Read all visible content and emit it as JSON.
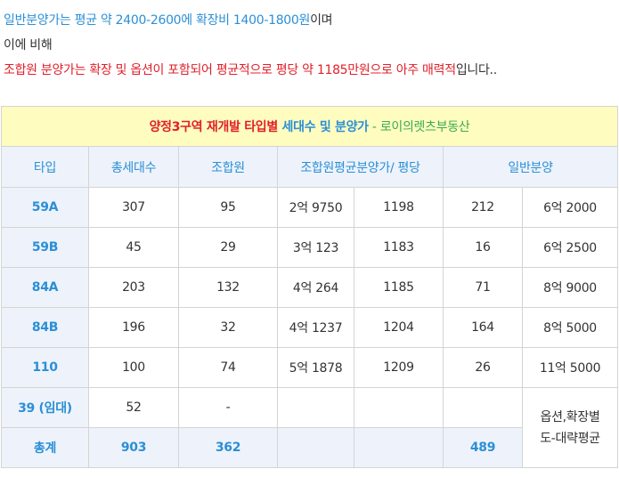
{
  "intro": {
    "line1_blue": "일반분양가는 평균 약 2400-2600에 확장비 1400-1800원",
    "line1_tail": "이며",
    "line2": "이에 비해",
    "line3_red": "조합원 분양가는 확장 및 옵션이 포함되어 평균적으로 평당 약 1185만원으로 아주 매력적",
    "line3_tail": "입니다.."
  },
  "table": {
    "title": {
      "red": "양정3구역 재개발 타입별 ",
      "blue": "세대수 및 분양가",
      "green": " - 로이의렛츠부동산"
    },
    "headers": {
      "type": "타입",
      "total_units": "총세대수",
      "member": "조합원",
      "member_price": "조합원평균분양가/ 평당",
      "general": "일반분양"
    },
    "rows": [
      {
        "type": "59A",
        "total": "307",
        "member": "95",
        "price": "2억 9750",
        "per_pyeong": "1198",
        "general_count": "212",
        "general_price": "6억 2000"
      },
      {
        "type": "59B",
        "total": "45",
        "member": "29",
        "price": "3억 123",
        "per_pyeong": "1183",
        "general_count": "16",
        "general_price": "6억 2500"
      },
      {
        "type": "84A",
        "total": "203",
        "member": "132",
        "price": "4억 264",
        "per_pyeong": "1185",
        "general_count": "71",
        "general_price": "8억 9000"
      },
      {
        "type": "84B",
        "total": "196",
        "member": "32",
        "price": "4억 1237",
        "per_pyeong": "1204",
        "general_count": "164",
        "general_price": "8억 5000"
      },
      {
        "type": "110",
        "total": "100",
        "member": "74",
        "price": "5억 1878",
        "per_pyeong": "1209",
        "general_count": "26",
        "general_price": "11억 5000"
      },
      {
        "type": "39 (임대)",
        "total": "52",
        "member": "-",
        "price": "",
        "per_pyeong": "",
        "general_count": ""
      }
    ],
    "total": {
      "label": "총계",
      "total": "903",
      "member": "362",
      "price": "",
      "per_pyeong": "",
      "general_count": "489"
    },
    "note": {
      "line1": "옵션,확장별",
      "line2": "도-대략평균"
    }
  }
}
